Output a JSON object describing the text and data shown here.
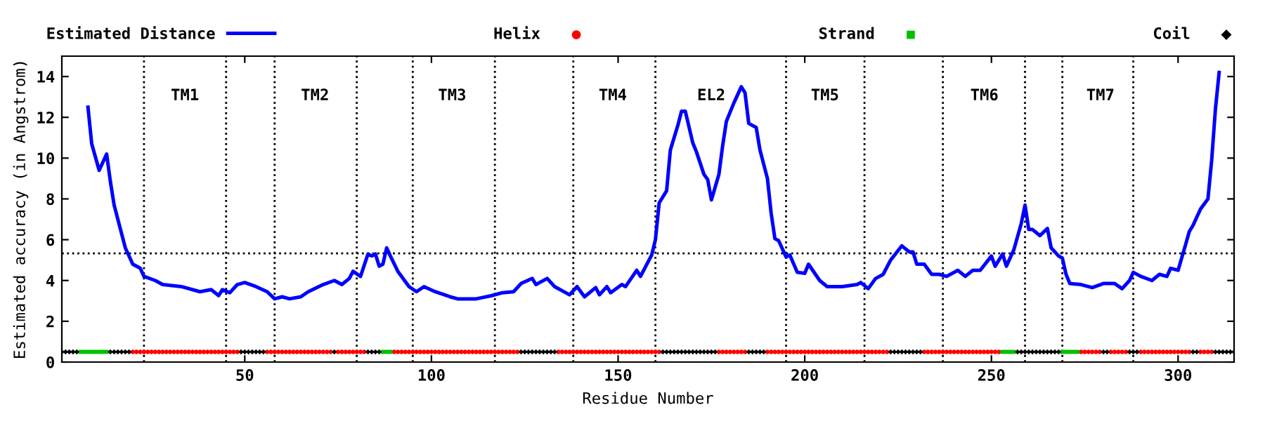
{
  "chart_data": {
    "type": "line",
    "xlabel": "Residue Number",
    "ylabel": "Estimated accuracy (in Angstrom)",
    "xlim": [
      1,
      315
    ],
    "ylim": [
      0,
      15
    ],
    "xticks": [
      50,
      100,
      150,
      200,
      250,
      300
    ],
    "yticks": [
      0,
      2,
      4,
      6,
      8,
      10,
      12,
      14
    ],
    "grid": false,
    "legend": "top",
    "series": [
      {
        "name": "Estimated Distance",
        "color": "#0000ff",
        "marker": "none",
        "line_style": "solid",
        "x": [
          8,
          9,
          11,
          13,
          14,
          15,
          17,
          18,
          20,
          22,
          23,
          26,
          28,
          33,
          38,
          41,
          43,
          44,
          46,
          48,
          50,
          53,
          56,
          58,
          60,
          62,
          65,
          67,
          71,
          74,
          76,
          78,
          79,
          81,
          83,
          84,
          85,
          86,
          87,
          88,
          89,
          91,
          94,
          96,
          98,
          101,
          105,
          107,
          112,
          116,
          119,
          122,
          124,
          127,
          128,
          131,
          133,
          137,
          139,
          141,
          144,
          145,
          147,
          148,
          151,
          152,
          155,
          156,
          159,
          160,
          161,
          163,
          164,
          166,
          167,
          168,
          170,
          171,
          173,
          174,
          175,
          177,
          178,
          179,
          181,
          183,
          184,
          185,
          187,
          188,
          190,
          191,
          192,
          193,
          195,
          196,
          198,
          200,
          201,
          204,
          206,
          210,
          214,
          215,
          217,
          219,
          221,
          223,
          226,
          228,
          229,
          230,
          232,
          234,
          236,
          238,
          241,
          243,
          245,
          247,
          250,
          251,
          253,
          254,
          256,
          258,
          259,
          260,
          261,
          263,
          265,
          266,
          268,
          269,
          270,
          271,
          274,
          277,
          280,
          283,
          285,
          287,
          288,
          290,
          293,
          295,
          297,
          298,
          300,
          302,
          303,
          304,
          306,
          308,
          309,
          310,
          311
        ],
        "values": [
          12.5,
          10.7,
          9.4,
          10.2,
          8.85,
          7.7,
          6.3,
          5.6,
          4.8,
          4.6,
          4.2,
          4.0,
          3.8,
          3.7,
          3.45,
          3.55,
          3.26,
          3.55,
          3.4,
          3.8,
          3.9,
          3.7,
          3.45,
          3.1,
          3.2,
          3.1,
          3.2,
          3.45,
          3.8,
          4.0,
          3.8,
          4.1,
          4.45,
          4.2,
          5.3,
          5.2,
          5.3,
          4.7,
          4.8,
          5.6,
          5.2,
          4.45,
          3.7,
          3.45,
          3.7,
          3.45,
          3.2,
          3.1,
          3.1,
          3.25,
          3.4,
          3.45,
          3.85,
          4.1,
          3.8,
          4.1,
          3.7,
          3.3,
          3.7,
          3.2,
          3.65,
          3.3,
          3.7,
          3.4,
          3.8,
          3.7,
          4.5,
          4.2,
          5.25,
          6.0,
          7.8,
          8.4,
          10.4,
          11.6,
          12.3,
          12.3,
          10.75,
          10.3,
          9.2,
          8.95,
          7.95,
          9.2,
          10.6,
          11.8,
          12.7,
          13.5,
          13.2,
          11.7,
          11.5,
          10.4,
          9.0,
          7.3,
          6.05,
          5.95,
          5.15,
          5.25,
          4.4,
          4.35,
          4.8,
          4.0,
          3.7,
          3.7,
          3.8,
          3.9,
          3.6,
          4.1,
          4.3,
          5.0,
          5.7,
          5.4,
          5.4,
          4.8,
          4.8,
          4.3,
          4.3,
          4.2,
          4.5,
          4.2,
          4.5,
          4.5,
          5.2,
          4.7,
          5.3,
          4.7,
          5.5,
          6.8,
          7.7,
          6.5,
          6.5,
          6.2,
          6.55,
          5.6,
          5.2,
          5.1,
          4.3,
          3.85,
          3.8,
          3.65,
          3.85,
          3.85,
          3.6,
          4.0,
          4.4,
          4.2,
          4.0,
          4.3,
          4.2,
          4.6,
          4.5,
          5.75,
          6.4,
          6.7,
          7.5,
          8.0,
          9.9,
          12.4,
          14.2
        ]
      },
      {
        "name": "Helix",
        "type": "scatter",
        "color": "#ff0000",
        "marker": "circle",
        "x": [
          20,
          21,
          22,
          23,
          24,
          25,
          26,
          27,
          28,
          29,
          30,
          31,
          32,
          33,
          34,
          35,
          36,
          37,
          38,
          39,
          40,
          41,
          42,
          43,
          44,
          45,
          46,
          47,
          48,
          56,
          57,
          58,
          59,
          60,
          61,
          62,
          63,
          64,
          65,
          66,
          67,
          68,
          69,
          70,
          71,
          72,
          73,
          75,
          76,
          77,
          78,
          79,
          80,
          81,
          82,
          90,
          91,
          92,
          93,
          94,
          95,
          96,
          97,
          98,
          99,
          100,
          101,
          102,
          103,
          104,
          105,
          106,
          107,
          108,
          109,
          110,
          111,
          112,
          113,
          114,
          115,
          116,
          117,
          118,
          119,
          120,
          121,
          122,
          123,
          134,
          135,
          136,
          137,
          138,
          139,
          140,
          141,
          142,
          143,
          144,
          145,
          146,
          147,
          148,
          149,
          150,
          151,
          152,
          153,
          154,
          155,
          156,
          157,
          158,
          159,
          160,
          161,
          177,
          178,
          179,
          180,
          181,
          182,
          183,
          184,
          190,
          191,
          192,
          193,
          194,
          195,
          196,
          197,
          198,
          199,
          200,
          201,
          202,
          203,
          204,
          205,
          206,
          207,
          208,
          209,
          210,
          211,
          212,
          213,
          214,
          215,
          216,
          217,
          218,
          219,
          220,
          221,
          222,
          232,
          233,
          234,
          235,
          236,
          237,
          238,
          239,
          240,
          241,
          242,
          243,
          244,
          245,
          246,
          247,
          248,
          249,
          250,
          251,
          252,
          274,
          275,
          276,
          277,
          278,
          279,
          282,
          283,
          284,
          285,
          286,
          290,
          291,
          292,
          293,
          294,
          295,
          296,
          297,
          298,
          299,
          300,
          301,
          302,
          303,
          306,
          307,
          308,
          309
        ],
        "values": [
          0.5,
          0.5,
          0.5,
          0.5,
          0.5,
          0.5,
          0.5,
          0.5,
          0.5,
          0.5,
          0.5,
          0.5,
          0.5,
          0.5,
          0.5,
          0.5,
          0.5,
          0.5,
          0.5,
          0.5,
          0.5,
          0.5,
          0.5,
          0.5,
          0.5,
          0.5,
          0.5,
          0.5,
          0.5,
          0.5,
          0.5,
          0.5,
          0.5,
          0.5,
          0.5,
          0.5,
          0.5,
          0.5,
          0.5,
          0.5,
          0.5,
          0.5,
          0.5,
          0.5,
          0.5,
          0.5,
          0.5,
          0.5,
          0.5,
          0.5,
          0.5,
          0.5,
          0.5,
          0.5,
          0.5,
          0.5,
          0.5,
          0.5,
          0.5,
          0.5,
          0.5,
          0.5,
          0.5,
          0.5,
          0.5,
          0.5,
          0.5,
          0.5,
          0.5,
          0.5,
          0.5,
          0.5,
          0.5,
          0.5,
          0.5,
          0.5,
          0.5,
          0.5,
          0.5,
          0.5,
          0.5,
          0.5,
          0.5,
          0.5,
          0.5,
          0.5,
          0.5,
          0.5,
          0.5,
          0.5,
          0.5,
          0.5,
          0.5,
          0.5,
          0.5,
          0.5,
          0.5,
          0.5,
          0.5,
          0.5,
          0.5,
          0.5,
          0.5,
          0.5,
          0.5,
          0.5,
          0.5,
          0.5,
          0.5,
          0.5,
          0.5,
          0.5,
          0.5,
          0.5,
          0.5,
          0.5,
          0.5,
          0.5,
          0.5,
          0.5,
          0.5,
          0.5,
          0.5,
          0.5,
          0.5,
          0.5,
          0.5,
          0.5,
          0.5,
          0.5,
          0.5,
          0.5,
          0.5,
          0.5,
          0.5,
          0.5,
          0.5,
          0.5,
          0.5,
          0.5,
          0.5,
          0.5,
          0.5,
          0.5,
          0.5,
          0.5,
          0.5,
          0.5,
          0.5,
          0.5,
          0.5,
          0.5,
          0.5,
          0.5,
          0.5,
          0.5,
          0.5,
          0.5,
          0.5,
          0.5,
          0.5,
          0.5,
          0.5,
          0.5,
          0.5,
          0.5,
          0.5,
          0.5,
          0.5,
          0.5,
          0.5,
          0.5,
          0.5,
          0.5,
          0.5,
          0.5,
          0.5,
          0.5,
          0.5,
          0.5,
          0.5,
          0.5,
          0.5,
          0.5,
          0.5,
          0.5,
          0.5,
          0.5,
          0.5,
          0.5,
          0.5,
          0.5,
          0.5,
          0.5,
          0.5,
          0.5,
          0.5,
          0.5,
          0.5,
          0.5,
          0.5,
          0.5,
          0.5,
          0.5,
          0.5,
          0.5,
          0.5,
          0.5
        ]
      },
      {
        "name": "Strand",
        "type": "scatter",
        "color": "#00c000",
        "marker": "square",
        "x": [
          6,
          7,
          8,
          9,
          10,
          11,
          12,
          13,
          87,
          88,
          89,
          253,
          254,
          255,
          256,
          269,
          270,
          271,
          272,
          273
        ],
        "values": [
          0.5,
          0.5,
          0.5,
          0.5,
          0.5,
          0.5,
          0.5,
          0.5,
          0.5,
          0.5,
          0.5,
          0.5,
          0.5,
          0.5,
          0.5,
          0.5,
          0.5,
          0.5,
          0.5,
          0.5
        ]
      },
      {
        "name": "Coil",
        "type": "scatter",
        "color": "#000000",
        "marker": "diamond",
        "x": [
          1,
          2,
          3,
          4,
          5,
          14,
          15,
          16,
          17,
          18,
          19,
          49,
          50,
          51,
          52,
          53,
          54,
          55,
          74,
          83,
          84,
          85,
          86,
          124,
          125,
          126,
          127,
          128,
          129,
          130,
          131,
          132,
          133,
          162,
          163,
          164,
          165,
          166,
          167,
          168,
          169,
          170,
          171,
          172,
          173,
          174,
          175,
          176,
          185,
          186,
          187,
          188,
          189,
          223,
          224,
          225,
          226,
          227,
          228,
          229,
          230,
          231,
          257,
          258,
          259,
          260,
          261,
          262,
          263,
          264,
          265,
          266,
          267,
          268,
          280,
          281,
          287,
          288,
          289,
          304,
          305,
          310,
          311,
          312,
          313,
          314,
          315
        ],
        "values": [
          0.5,
          0.5,
          0.5,
          0.5,
          0.5,
          0.5,
          0.5,
          0.5,
          0.5,
          0.5,
          0.5,
          0.5,
          0.5,
          0.5,
          0.5,
          0.5,
          0.5,
          0.5,
          0.5,
          0.5,
          0.5,
          0.5,
          0.5,
          0.5,
          0.5,
          0.5,
          0.5,
          0.5,
          0.5,
          0.5,
          0.5,
          0.5,
          0.5,
          0.5,
          0.5,
          0.5,
          0.5,
          0.5,
          0.5,
          0.5,
          0.5,
          0.5,
          0.5,
          0.5,
          0.5,
          0.5,
          0.5,
          0.5,
          0.5,
          0.5,
          0.5,
          0.5,
          0.5,
          0.5,
          0.5,
          0.5,
          0.5,
          0.5,
          0.5,
          0.5,
          0.5,
          0.5,
          0.5,
          0.5,
          0.5,
          0.5,
          0.5,
          0.5,
          0.5,
          0.5,
          0.5,
          0.5,
          0.5,
          0.5,
          0.5,
          0.5,
          0.5,
          0.5,
          0.5,
          0.5,
          0.5,
          0.5,
          0.5,
          0.5,
          0.5,
          0.5,
          0.5
        ]
      }
    ],
    "ref_lines": [
      {
        "axis": "y",
        "value": 5.33,
        "color": "#000000",
        "line_style": "dotted"
      },
      {
        "axis": "x",
        "value": 23,
        "color": "#000000",
        "line_style": "dotted"
      },
      {
        "axis": "x",
        "value": 45,
        "color": "#000000",
        "line_style": "dotted"
      },
      {
        "axis": "x",
        "value": 58,
        "color": "#000000",
        "line_style": "dotted"
      },
      {
        "axis": "x",
        "value": 80,
        "color": "#000000",
        "line_style": "dotted"
      },
      {
        "axis": "x",
        "value": 95,
        "color": "#000000",
        "line_style": "dotted"
      },
      {
        "axis": "x",
        "value": 117,
        "color": "#000000",
        "line_style": "dotted"
      },
      {
        "axis": "x",
        "value": 138,
        "color": "#000000",
        "line_style": "dotted"
      },
      {
        "axis": "x",
        "value": 160,
        "color": "#000000",
        "line_style": "dotted"
      },
      {
        "axis": "x",
        "value": 195,
        "color": "#000000",
        "line_style": "dotted"
      },
      {
        "axis": "x",
        "value": 216,
        "color": "#000000",
        "line_style": "dotted"
      },
      {
        "axis": "x",
        "value": 237,
        "color": "#000000",
        "line_style": "dotted"
      },
      {
        "axis": "x",
        "value": 259,
        "color": "#000000",
        "line_style": "dotted"
      },
      {
        "axis": "x",
        "value": 269,
        "color": "#000000",
        "line_style": "dotted"
      },
      {
        "axis": "x",
        "value": 288,
        "color": "#000000",
        "line_style": "dotted"
      }
    ],
    "annotations": [
      "TM1",
      "TM2",
      "TM3",
      "TM4",
      "EL2",
      "TM5",
      "TM6",
      "TM7"
    ]
  }
}
